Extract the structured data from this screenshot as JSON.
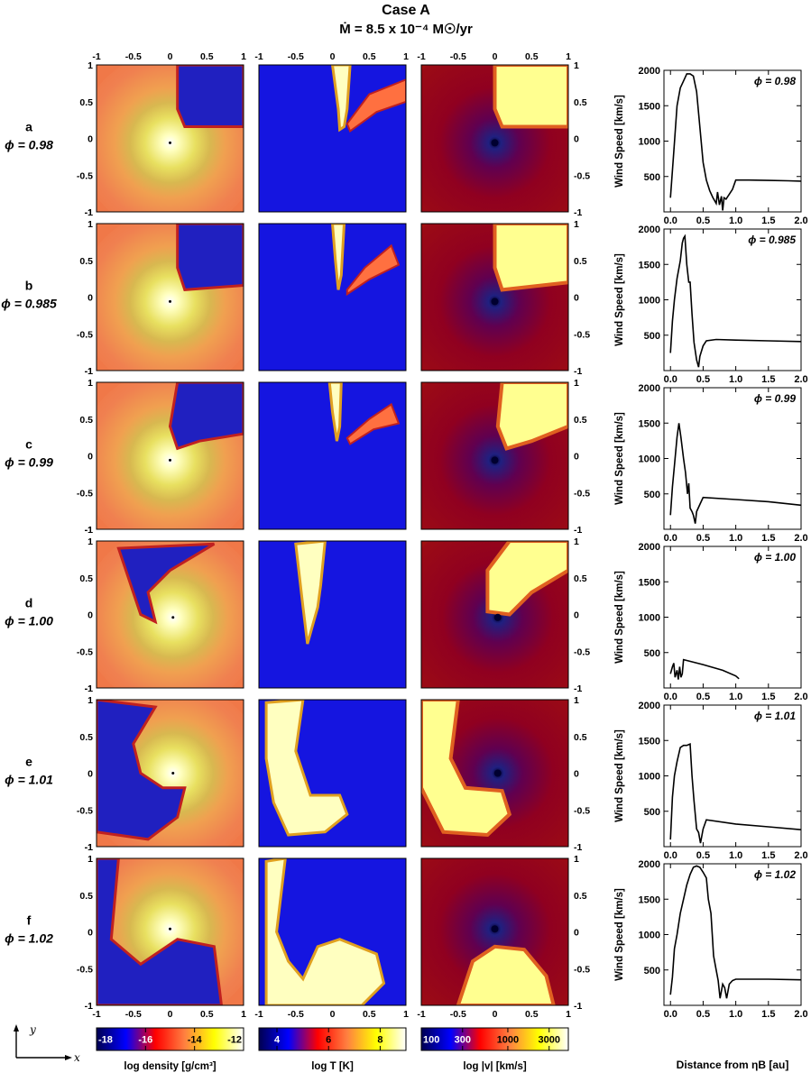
{
  "title": "Case A",
  "subtitle": "Ṁ = 8.5 x 10⁻⁴ M☉/yr",
  "rows": [
    {
      "letter": "a",
      "phase": "ϕ = 0.98"
    },
    {
      "letter": "b",
      "phase": "ϕ = 0.985"
    },
    {
      "letter": "c",
      "phase": "ϕ = 0.99"
    },
    {
      "letter": "d",
      "phase": "ϕ = 1.00"
    },
    {
      "letter": "e",
      "phase": "ϕ = 1.01"
    },
    {
      "letter": "f",
      "phase": "ϕ = 1.02"
    }
  ],
  "map_ticks": [
    "-1",
    "-0.5",
    "0",
    "0.5",
    "1"
  ],
  "axis_arrows": {
    "x": "x",
    "y": "y"
  },
  "colorbars": [
    {
      "label": "log density  [g/cm³]",
      "ticks": [
        "-18",
        "-16",
        "-14",
        "-12"
      ],
      "range": [
        -18,
        -12
      ],
      "colors": [
        "#000050",
        "#0000ff",
        "#ff0000",
        "#ff8040",
        "#ffff00",
        "#ffffff"
      ]
    },
    {
      "label": "log T  [K]",
      "ticks": [
        "4",
        "6",
        "8"
      ],
      "range": [
        3.3,
        9
      ],
      "colors": [
        "#000050",
        "#0000ff",
        "#ff0000",
        "#ff8040",
        "#ffff00",
        "#ffffff"
      ]
    },
    {
      "label": "log |v|  [km/s]",
      "ticks": [
        "100",
        "300",
        "1000",
        "3000"
      ],
      "range": [
        100,
        5000
      ],
      "log": true,
      "colors": [
        "#000050",
        "#0000ff",
        "#ff0000",
        "#ff8040",
        "#ffff00",
        "#ffffff"
      ]
    }
  ],
  "chart_data": {
    "type": "line",
    "ylabel": "Wind Speed  [km/s]",
    "xlabel": "Distance from ηB  [au]",
    "xlim": [
      -0.1,
      2.0
    ],
    "ylim": [
      0,
      2000
    ],
    "xticks": [
      "0.0",
      "0.5",
      "1.0",
      "1.5",
      "2.0"
    ],
    "yticks": [
      "500",
      "1000",
      "1500",
      "2000"
    ],
    "series": [
      {
        "label": "ϕ = 0.98",
        "x": [
          0.0,
          0.05,
          0.1,
          0.15,
          0.2,
          0.25,
          0.3,
          0.35,
          0.4,
          0.45,
          0.5,
          0.55,
          0.6,
          0.65,
          0.7,
          0.72,
          0.75,
          0.78,
          0.8,
          0.82,
          0.85,
          0.9,
          0.95,
          1.0,
          1.2,
          1.5,
          1.8,
          2.0
        ],
        "y": [
          200,
          850,
          1500,
          1750,
          1850,
          1950,
          1950,
          1920,
          1700,
          1200,
          700,
          450,
          300,
          200,
          120,
          280,
          100,
          220,
          20,
          200,
          180,
          250,
          320,
          450,
          450,
          445,
          440,
          435
        ]
      },
      {
        "label": "ϕ = 0.985",
        "x": [
          0.0,
          0.03,
          0.06,
          0.1,
          0.15,
          0.18,
          0.2,
          0.22,
          0.25,
          0.28,
          0.3,
          0.33,
          0.36,
          0.4,
          0.43,
          0.45,
          0.5,
          0.55,
          0.7,
          1.0,
          1.5,
          2.0
        ],
        "y": [
          250,
          700,
          1000,
          1300,
          1550,
          1800,
          1870,
          1900,
          1500,
          1250,
          1250,
          800,
          400,
          150,
          50,
          200,
          350,
          420,
          440,
          430,
          420,
          410
        ]
      },
      {
        "label": "ϕ = 0.99",
        "x": [
          0.0,
          0.03,
          0.06,
          0.1,
          0.13,
          0.16,
          0.2,
          0.23,
          0.26,
          0.28,
          0.3,
          0.33,
          0.35,
          0.38,
          0.4,
          0.45,
          0.5,
          1.0,
          1.5,
          2.0
        ],
        "y": [
          200,
          600,
          900,
          1300,
          1500,
          1300,
          1000,
          800,
          500,
          650,
          300,
          250,
          200,
          80,
          250,
          350,
          450,
          420,
          390,
          340
        ]
      },
      {
        "label": "ϕ = 1.00",
        "x": [
          0.0,
          0.03,
          0.05,
          0.07,
          0.1,
          0.12,
          0.14,
          0.16,
          0.18,
          0.2,
          0.5,
          0.8,
          1.0,
          1.05
        ],
        "y": [
          200,
          300,
          350,
          150,
          250,
          120,
          300,
          150,
          200,
          400,
          330,
          250,
          170,
          130
        ]
      },
      {
        "label": "ϕ = 1.01",
        "x": [
          0.0,
          0.03,
          0.06,
          0.1,
          0.15,
          0.2,
          0.25,
          0.3,
          0.33,
          0.36,
          0.4,
          0.43,
          0.46,
          0.5,
          0.55,
          1.0,
          1.5,
          2.0
        ],
        "y": [
          100,
          700,
          1000,
          1200,
          1400,
          1430,
          1430,
          1450,
          1000,
          650,
          250,
          200,
          50,
          250,
          380,
          320,
          280,
          240
        ]
      },
      {
        "label": "ϕ = 1.02",
        "x": [
          0.0,
          0.03,
          0.06,
          0.1,
          0.15,
          0.2,
          0.25,
          0.3,
          0.35,
          0.4,
          0.45,
          0.5,
          0.55,
          0.58,
          0.62,
          0.66,
          0.7,
          0.73,
          0.76,
          0.8,
          0.83,
          0.86,
          0.9,
          0.95,
          1.0,
          1.5,
          2.0
        ],
        "y": [
          150,
          400,
          800,
          1000,
          1300,
          1500,
          1700,
          1850,
          1950,
          1970,
          1950,
          1880,
          1800,
          1500,
          1300,
          700,
          500,
          350,
          100,
          300,
          250,
          100,
          300,
          350,
          370,
          370,
          360
        ]
      }
    ]
  }
}
